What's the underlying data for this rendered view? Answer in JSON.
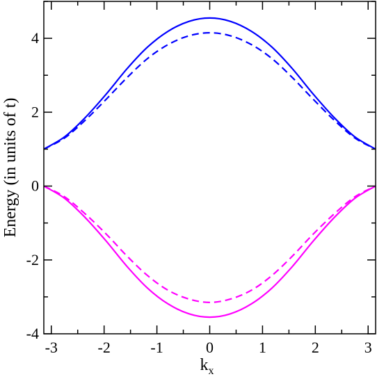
{
  "chart_data": {
    "type": "line",
    "xlabel": "k",
    "xlabel_subscript": "x",
    "ylabel": "Energy (in units of t)",
    "xlim": [
      -3.14159,
      3.14159
    ],
    "ylim": [
      -4,
      5
    ],
    "xticks": [
      -3,
      -2,
      -1,
      0,
      1,
      2,
      3
    ],
    "xtick_labels": [
      "-3",
      "-2",
      "-1",
      "0",
      "1",
      "2",
      "3"
    ],
    "yticks": [
      -4,
      -2,
      0,
      2,
      4
    ],
    "ytick_labels": [
      "-4",
      "-2",
      "0",
      "2",
      "4"
    ],
    "grid": false,
    "series": [
      {
        "color": "#0000ff",
        "style": "solid",
        "x": [
          -3.14159,
          -2.75,
          -2.36,
          -1.96,
          -1.57,
          -1.18,
          -0.79,
          -0.39,
          0,
          0.39,
          0.79,
          1.18,
          1.57,
          1.96,
          2.36,
          2.75,
          3.14159
        ],
        "y": [
          1.0,
          1.33,
          1.85,
          2.49,
          3.17,
          3.76,
          4.19,
          4.46,
          4.55,
          4.46,
          4.19,
          3.76,
          3.17,
          2.49,
          1.85,
          1.33,
          1.0
        ]
      },
      {
        "color": "#0000ff",
        "style": "dashed",
        "x": [
          -3.14159,
          -2.75,
          -2.36,
          -1.96,
          -1.57,
          -1.18,
          -0.79,
          -0.39,
          0,
          0.39,
          0.79,
          1.18,
          1.57,
          1.96,
          2.36,
          2.75,
          3.14159
        ],
        "y": [
          1.0,
          1.3,
          1.78,
          2.35,
          2.93,
          3.45,
          3.83,
          4.07,
          4.15,
          4.07,
          3.83,
          3.45,
          2.93,
          2.35,
          1.78,
          1.3,
          1.0
        ]
      },
      {
        "color": "#ff00ff",
        "style": "solid",
        "x": [
          -3.14159,
          -2.75,
          -2.36,
          -1.96,
          -1.57,
          -1.18,
          -0.79,
          -0.39,
          0,
          0.39,
          0.79,
          1.18,
          1.57,
          1.96,
          2.36,
          2.75,
          3.14159
        ],
        "y": [
          0.0,
          -0.33,
          -0.85,
          -1.49,
          -2.17,
          -2.76,
          -3.19,
          -3.46,
          -3.55,
          -3.46,
          -3.19,
          -2.76,
          -2.17,
          -1.49,
          -0.85,
          -0.33,
          0.0
        ]
      },
      {
        "color": "#ff00ff",
        "style": "dashed",
        "x": [
          -3.14159,
          -2.75,
          -2.36,
          -1.96,
          -1.57,
          -1.18,
          -0.79,
          -0.39,
          0,
          0.39,
          0.79,
          1.18,
          1.57,
          1.96,
          2.36,
          2.75,
          3.14159
        ],
        "y": [
          0.0,
          -0.29,
          -0.75,
          -1.3,
          -1.89,
          -2.42,
          -2.82,
          -3.06,
          -3.15,
          -3.06,
          -2.82,
          -2.42,
          -1.89,
          -1.3,
          -0.75,
          -0.29,
          0.0
        ]
      }
    ]
  }
}
